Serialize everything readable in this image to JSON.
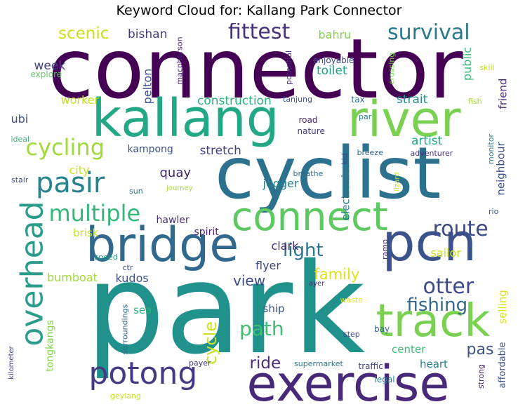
{
  "title": "Keyword Cloud for: Kallang Park Connector",
  "words": [
    {
      "id": "connector",
      "text": "connector",
      "color": "#440154"
    },
    {
      "id": "park",
      "text": "park",
      "color": "#21918c"
    },
    {
      "id": "cyclist",
      "text": "cyclist",
      "color": "#2c728e"
    },
    {
      "id": "kallang",
      "text": "kallang",
      "color": "#22a884"
    },
    {
      "id": "river",
      "text": "river",
      "color": "#7ad151"
    },
    {
      "id": "bridge",
      "text": "bridge",
      "color": "#31688e"
    },
    {
      "id": "pcn",
      "text": "pcn",
      "color": "#3b528b"
    },
    {
      "id": "exercise",
      "text": "exercise",
      "color": "#482878"
    },
    {
      "id": "connect",
      "text": "connect",
      "color": "#5ec962"
    },
    {
      "id": "track",
      "text": "track",
      "color": "#7ad151"
    },
    {
      "id": "potong",
      "text": "potong",
      "color": "#443983"
    },
    {
      "id": "overhead",
      "text": "overhead",
      "color": "#2a9d8a"
    },
    {
      "id": "pasir",
      "text": "pasir",
      "color": "#26828e"
    },
    {
      "id": "cycling",
      "text": "cycling",
      "color": "#a0da39"
    },
    {
      "id": "fittest",
      "text": "fittest",
      "color": "#46327e"
    },
    {
      "id": "survival",
      "text": "survival",
      "color": "#2a788e"
    },
    {
      "id": "multiple",
      "text": "multiple",
      "color": "#35b779"
    },
    {
      "id": "route",
      "text": "route",
      "color": "#3e4a89"
    },
    {
      "id": "otter",
      "text": "otter",
      "color": "#3e4989"
    },
    {
      "id": "fishing",
      "text": "fishing",
      "color": "#31688e"
    },
    {
      "id": "path",
      "text": "path",
      "color": "#40bd72"
    },
    {
      "id": "light",
      "text": "light",
      "color": "#2c728e"
    },
    {
      "id": "cycle",
      "text": "cycle",
      "color": "#c8e020"
    },
    {
      "id": "scenic",
      "text": "scenic",
      "color": "#c8e020"
    },
    {
      "id": "ride",
      "text": "ride",
      "color": "#472d7b"
    },
    {
      "id": "pas",
      "text": "pas",
      "color": "#3b528b"
    },
    {
      "id": "family",
      "text": "family",
      "color": "#dde318"
    },
    {
      "id": "view",
      "text": "view",
      "color": "#3e4989"
    },
    {
      "id": "stretch",
      "text": "stretch",
      "color": "#414487"
    },
    {
      "id": "construction",
      "text": "construction",
      "color": "#2db27d"
    },
    {
      "id": "strait",
      "text": "strait",
      "color": "#228d8d"
    },
    {
      "id": "artist",
      "text": "artist",
      "color": "#21a585"
    },
    {
      "id": "toilet",
      "text": "toilet",
      "color": "#1fa088"
    },
    {
      "id": "bishan",
      "text": "bishan",
      "color": "#443983"
    },
    {
      "id": "bahru",
      "text": "bahru",
      "color": "#81d34d"
    },
    {
      "id": "week",
      "text": "week",
      "color": "#414487"
    },
    {
      "id": "worker",
      "text": "worker",
      "color": "#c2df23"
    },
    {
      "id": "ubi",
      "text": "ubi",
      "color": "#3b528b"
    },
    {
      "id": "city",
      "text": "city",
      "color": "#d2e21b"
    },
    {
      "id": "quay",
      "text": "quay",
      "color": "#482475"
    },
    {
      "id": "jogger",
      "text": "jogger",
      "color": "#277f8e"
    },
    {
      "id": "kampong",
      "text": "kampong",
      "color": "#3b528b"
    },
    {
      "id": "pelton",
      "text": "pelton",
      "color": "#3a548c"
    },
    {
      "id": "public",
      "text": "public",
      "color": "#35b779"
    },
    {
      "id": "friend",
      "text": "friend",
      "color": "#472c7a"
    },
    {
      "id": "neighbour",
      "text": "neighbour",
      "color": "#3b528b"
    },
    {
      "id": "electronics",
      "text": "electronics",
      "color": "#2a788e"
    },
    {
      "id": "sailor",
      "text": "sailor",
      "color": "#c8e020"
    },
    {
      "id": "clark",
      "text": "clark",
      "color": "#482878"
    },
    {
      "id": "flyer",
      "text": "flyer",
      "color": "#3e4989"
    },
    {
      "id": "kudos",
      "text": "kudos",
      "color": "#3b528b"
    },
    {
      "id": "bumboat",
      "text": "bumboat",
      "color": "#9fda3a"
    },
    {
      "id": "brisk",
      "text": "brisk",
      "color": "#c8e020"
    },
    {
      "id": "hawler",
      "text": "hawler",
      "color": "#472d7b"
    },
    {
      "id": "spirit",
      "text": "spirit",
      "color": "#482475"
    },
    {
      "id": "sea",
      "text": "sea",
      "color": "#2db27d"
    },
    {
      "id": "ship",
      "text": "ship",
      "color": "#3b528b"
    },
    {
      "id": "tongkangs",
      "text": "tongkangs",
      "color": "#81d34d"
    },
    {
      "id": "selling",
      "text": "selling",
      "color": "#d8e219"
    },
    {
      "id": "center",
      "text": "center",
      "color": "#3dbc74"
    },
    {
      "id": "heart",
      "text": "heart",
      "color": "#277f8e"
    },
    {
      "id": "affordable",
      "text": "affordable",
      "color": "#3b528b"
    },
    {
      "id": "explore",
      "text": "explore",
      "color": "#5ec962"
    },
    {
      "id": "macpherson",
      "text": "macpherson",
      "color": "#482475"
    },
    {
      "id": "enjoyable",
      "text": "enjoyable",
      "color": "#3e4989"
    },
    {
      "id": "potential",
      "text": "potential",
      "color": "#482878"
    },
    {
      "id": "tanjung",
      "text": "tanjung",
      "color": "#3b528b"
    },
    {
      "id": "crossing",
      "text": "crossing",
      "color": "#7ad151"
    },
    {
      "id": "skill",
      "text": "skill",
      "color": "#c8e020"
    },
    {
      "id": "tax",
      "text": "tax",
      "color": "#31688e"
    },
    {
      "id": "fish",
      "text": "fish",
      "color": "#a5db36"
    },
    {
      "id": "road",
      "text": "road",
      "color": "#482878"
    },
    {
      "id": "par",
      "text": "par",
      "color": "#2a788e"
    },
    {
      "id": "nature",
      "text": "nature",
      "color": "#443983"
    },
    {
      "id": "ideal",
      "text": "ideal",
      "color": "#35b779"
    },
    {
      "id": "monitor",
      "text": "monitor",
      "color": "#2a788e"
    },
    {
      "id": "kid",
      "text": "kid",
      "color": "#3e4989"
    },
    {
      "id": "breeze",
      "text": "breeze",
      "color": "#31688e"
    },
    {
      "id": "adventurer",
      "text": "adventurer",
      "color": "#46307e"
    },
    {
      "id": "stair",
      "text": "stair",
      "color": "#3e4989"
    },
    {
      "id": "breathe",
      "text": "breathe",
      "color": "#31688e"
    },
    {
      "id": "lizard",
      "text": "lizard",
      "color": "#c2df23"
    },
    {
      "id": "sun",
      "text": "sun",
      "color": "#2a788e"
    },
    {
      "id": "journey",
      "text": "journey",
      "color": "#a5db36"
    },
    {
      "id": "rio",
      "text": "rio",
      "color": "#3b528b"
    },
    {
      "id": "speed",
      "text": "speed",
      "color": "#20a386"
    },
    {
      "id": "ramp",
      "text": "ramp",
      "color": "#46327e"
    },
    {
      "id": "ctr",
      "text": "ctr",
      "color": "#3e4989"
    },
    {
      "id": "surroundings",
      "text": "surroundings",
      "color": "#31688e"
    },
    {
      "id": "ayer",
      "text": "ayer",
      "color": "#482878"
    },
    {
      "id": "waste",
      "text": "waste",
      "color": "#dde318"
    },
    {
      "id": "step",
      "text": "step",
      "color": "#3e4989"
    },
    {
      "id": "bay",
      "text": "bay",
      "color": "#31688e"
    },
    {
      "id": "kilometer",
      "text": "kilometer",
      "color": "#414487"
    },
    {
      "id": "payer",
      "text": "payer",
      "color": "#443983"
    },
    {
      "id": "supermarket",
      "text": "supermarket",
      "color": "#2a788e"
    },
    {
      "id": "traffic",
      "text": "traffic",
      "color": "#414487"
    },
    {
      "id": "legal",
      "text": "legal",
      "color": "#26828e"
    },
    {
      "id": "strong",
      "text": "strong",
      "color": "#482878"
    },
    {
      "id": "geylang",
      "text": "geylang",
      "color": "#c8e020"
    }
  ]
}
